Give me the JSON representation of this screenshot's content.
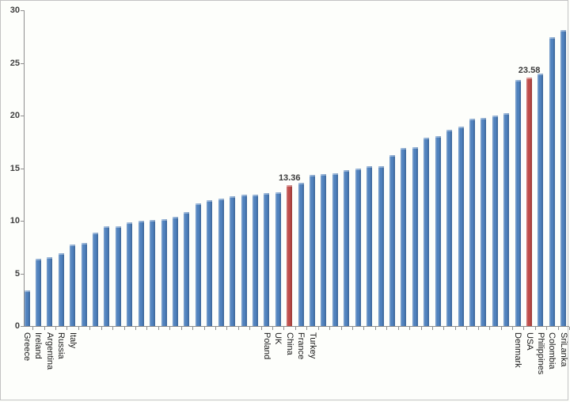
{
  "chart_data": {
    "type": "bar",
    "title": "",
    "xlabel": "",
    "ylabel": "",
    "ylim": [
      0,
      30
    ],
    "yticks": [
      0,
      5,
      10,
      15,
      20,
      25,
      30
    ],
    "grid": false,
    "legend": null,
    "bar_color": "#4F81BD",
    "highlight_color": "#BE4B48",
    "axis_color": "#8E8E8E",
    "values": [
      3.38,
      6.41,
      6.52,
      6.89,
      7.77,
      7.89,
      8.89,
      9.47,
      9.47,
      9.85,
      10.02,
      10.08,
      10.13,
      10.35,
      10.85,
      11.65,
      11.93,
      12.11,
      12.31,
      12.48,
      12.48,
      12.61,
      12.68,
      13.36,
      13.63,
      14.36,
      14.44,
      14.54,
      14.81,
      14.98,
      15.19,
      15.21,
      16.24,
      16.92,
      16.99,
      17.92,
      18.07,
      18.65,
      18.95,
      19.7,
      19.75,
      20.0,
      20.2,
      23.41,
      23.58,
      23.96,
      27.47,
      28.14
    ],
    "labels": [
      "Greece",
      "Ireland",
      "Argentina",
      "Russia",
      "Italy",
      "",
      "",
      "",
      "",
      "",
      "",
      "",
      "",
      "",
      "",
      "",
      "",
      "",
      "",
      "",
      "",
      "Poland",
      "UK",
      "China",
      "France",
      "Turkey",
      "",
      "",
      "",
      "",
      "",
      "",
      "",
      "",
      "",
      "",
      "",
      "",
      "",
      "",
      "",
      "",
      "",
      "Denmark",
      "USA",
      "Philippines",
      "Colombia",
      "SriLanka"
    ],
    "highlighted_indices": [
      23,
      44
    ],
    "data_labels": {
      "23": "13.36",
      "44": "23.58"
    }
  }
}
